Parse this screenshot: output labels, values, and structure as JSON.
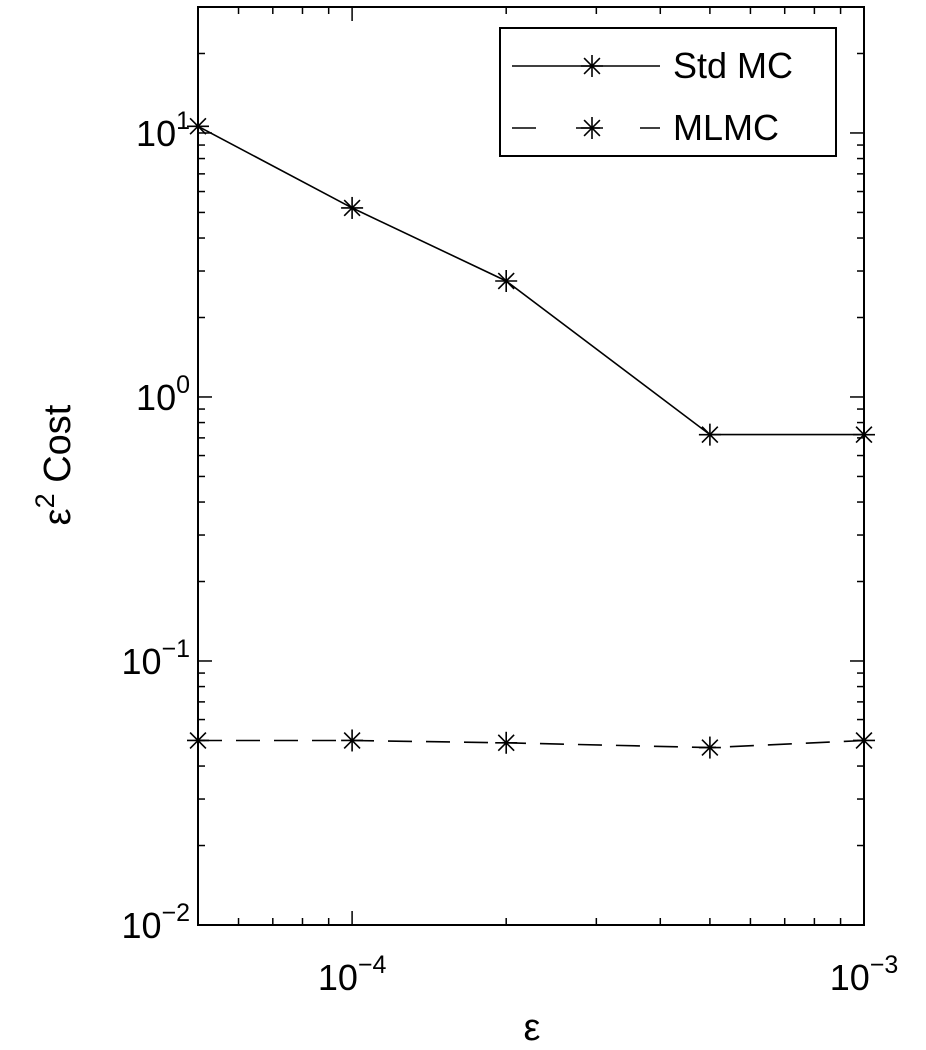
{
  "chart_data": {
    "type": "line",
    "xscale": "log",
    "yscale": "log",
    "xlim": [
      5e-05,
      0.001
    ],
    "ylim": [
      0.01,
      30
    ],
    "x_ticks": [
      {
        "value": 0.0001,
        "base": "10",
        "exp": "−4"
      },
      {
        "value": 0.001,
        "base": "10",
        "exp": "−3"
      }
    ],
    "y_ticks": [
      {
        "value": 0.01,
        "base": "10",
        "exp": "−2"
      },
      {
        "value": 0.1,
        "base": "10",
        "exp": "−1"
      },
      {
        "value": 1,
        "base": "10",
        "exp": "0"
      },
      {
        "value": 10,
        "base": "10",
        "exp": "1"
      }
    ],
    "xlabel": "ε",
    "ylabel": {
      "prefix": "ε",
      "sup": "2",
      "suffix": " Cost"
    },
    "legend_position": "top-right",
    "series": [
      {
        "name": "Std MC",
        "line_style": "solid",
        "marker": "asterisk",
        "x": [
          5e-05,
          0.0001,
          0.0002,
          0.0005,
          0.001
        ],
        "y": [
          10.6,
          5.2,
          2.75,
          0.72,
          0.72
        ]
      },
      {
        "name": "MLMC",
        "line_style": "dashed",
        "marker": "asterisk",
        "x": [
          5e-05,
          0.0001,
          0.0002,
          0.0005,
          0.001
        ],
        "y": [
          0.05,
          0.05,
          0.049,
          0.047,
          0.05
        ]
      }
    ]
  }
}
